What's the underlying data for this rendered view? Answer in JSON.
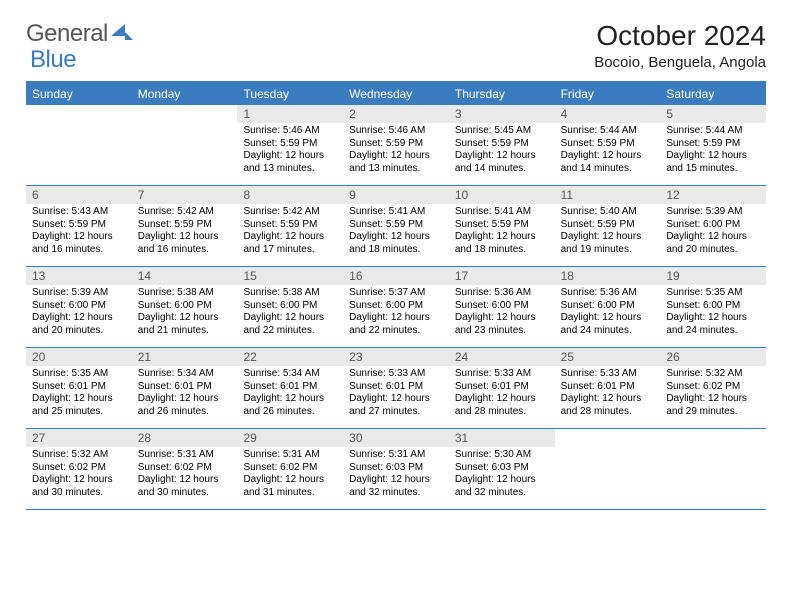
{
  "brand": {
    "part1": "General",
    "part2": "Blue"
  },
  "title": "October 2024",
  "location": "Bocoio, Benguela, Angola",
  "colors": {
    "accent": "#3b7bbf",
    "daynum_bg": "#e9e9e9",
    "text": "#000000",
    "muted": "#555555"
  },
  "day_names": [
    "Sunday",
    "Monday",
    "Tuesday",
    "Wednesday",
    "Thursday",
    "Friday",
    "Saturday"
  ],
  "labels": {
    "sunrise": "Sunrise:",
    "sunset": "Sunset:",
    "daylight": "Daylight:"
  },
  "weeks": [
    [
      null,
      null,
      {
        "n": "1",
        "sr": "5:46 AM",
        "ss": "5:59 PM",
        "dl": "12 hours and 13 minutes."
      },
      {
        "n": "2",
        "sr": "5:46 AM",
        "ss": "5:59 PM",
        "dl": "12 hours and 13 minutes."
      },
      {
        "n": "3",
        "sr": "5:45 AM",
        "ss": "5:59 PM",
        "dl": "12 hours and 14 minutes."
      },
      {
        "n": "4",
        "sr": "5:44 AM",
        "ss": "5:59 PM",
        "dl": "12 hours and 14 minutes."
      },
      {
        "n": "5",
        "sr": "5:44 AM",
        "ss": "5:59 PM",
        "dl": "12 hours and 15 minutes."
      }
    ],
    [
      {
        "n": "6",
        "sr": "5:43 AM",
        "ss": "5:59 PM",
        "dl": "12 hours and 16 minutes."
      },
      {
        "n": "7",
        "sr": "5:42 AM",
        "ss": "5:59 PM",
        "dl": "12 hours and 16 minutes."
      },
      {
        "n": "8",
        "sr": "5:42 AM",
        "ss": "5:59 PM",
        "dl": "12 hours and 17 minutes."
      },
      {
        "n": "9",
        "sr": "5:41 AM",
        "ss": "5:59 PM",
        "dl": "12 hours and 18 minutes."
      },
      {
        "n": "10",
        "sr": "5:41 AM",
        "ss": "5:59 PM",
        "dl": "12 hours and 18 minutes."
      },
      {
        "n": "11",
        "sr": "5:40 AM",
        "ss": "5:59 PM",
        "dl": "12 hours and 19 minutes."
      },
      {
        "n": "12",
        "sr": "5:39 AM",
        "ss": "6:00 PM",
        "dl": "12 hours and 20 minutes."
      }
    ],
    [
      {
        "n": "13",
        "sr": "5:39 AM",
        "ss": "6:00 PM",
        "dl": "12 hours and 20 minutes."
      },
      {
        "n": "14",
        "sr": "5:38 AM",
        "ss": "6:00 PM",
        "dl": "12 hours and 21 minutes."
      },
      {
        "n": "15",
        "sr": "5:38 AM",
        "ss": "6:00 PM",
        "dl": "12 hours and 22 minutes."
      },
      {
        "n": "16",
        "sr": "5:37 AM",
        "ss": "6:00 PM",
        "dl": "12 hours and 22 minutes."
      },
      {
        "n": "17",
        "sr": "5:36 AM",
        "ss": "6:00 PM",
        "dl": "12 hours and 23 minutes."
      },
      {
        "n": "18",
        "sr": "5:36 AM",
        "ss": "6:00 PM",
        "dl": "12 hours and 24 minutes."
      },
      {
        "n": "19",
        "sr": "5:35 AM",
        "ss": "6:00 PM",
        "dl": "12 hours and 24 minutes."
      }
    ],
    [
      {
        "n": "20",
        "sr": "5:35 AM",
        "ss": "6:01 PM",
        "dl": "12 hours and 25 minutes."
      },
      {
        "n": "21",
        "sr": "5:34 AM",
        "ss": "6:01 PM",
        "dl": "12 hours and 26 minutes."
      },
      {
        "n": "22",
        "sr": "5:34 AM",
        "ss": "6:01 PM",
        "dl": "12 hours and 26 minutes."
      },
      {
        "n": "23",
        "sr": "5:33 AM",
        "ss": "6:01 PM",
        "dl": "12 hours and 27 minutes."
      },
      {
        "n": "24",
        "sr": "5:33 AM",
        "ss": "6:01 PM",
        "dl": "12 hours and 28 minutes."
      },
      {
        "n": "25",
        "sr": "5:33 AM",
        "ss": "6:01 PM",
        "dl": "12 hours and 28 minutes."
      },
      {
        "n": "26",
        "sr": "5:32 AM",
        "ss": "6:02 PM",
        "dl": "12 hours and 29 minutes."
      }
    ],
    [
      {
        "n": "27",
        "sr": "5:32 AM",
        "ss": "6:02 PM",
        "dl": "12 hours and 30 minutes."
      },
      {
        "n": "28",
        "sr": "5:31 AM",
        "ss": "6:02 PM",
        "dl": "12 hours and 30 minutes."
      },
      {
        "n": "29",
        "sr": "5:31 AM",
        "ss": "6:02 PM",
        "dl": "12 hours and 31 minutes."
      },
      {
        "n": "30",
        "sr": "5:31 AM",
        "ss": "6:03 PM",
        "dl": "12 hours and 32 minutes."
      },
      {
        "n": "31",
        "sr": "5:30 AM",
        "ss": "6:03 PM",
        "dl": "12 hours and 32 minutes."
      },
      null,
      null
    ]
  ]
}
